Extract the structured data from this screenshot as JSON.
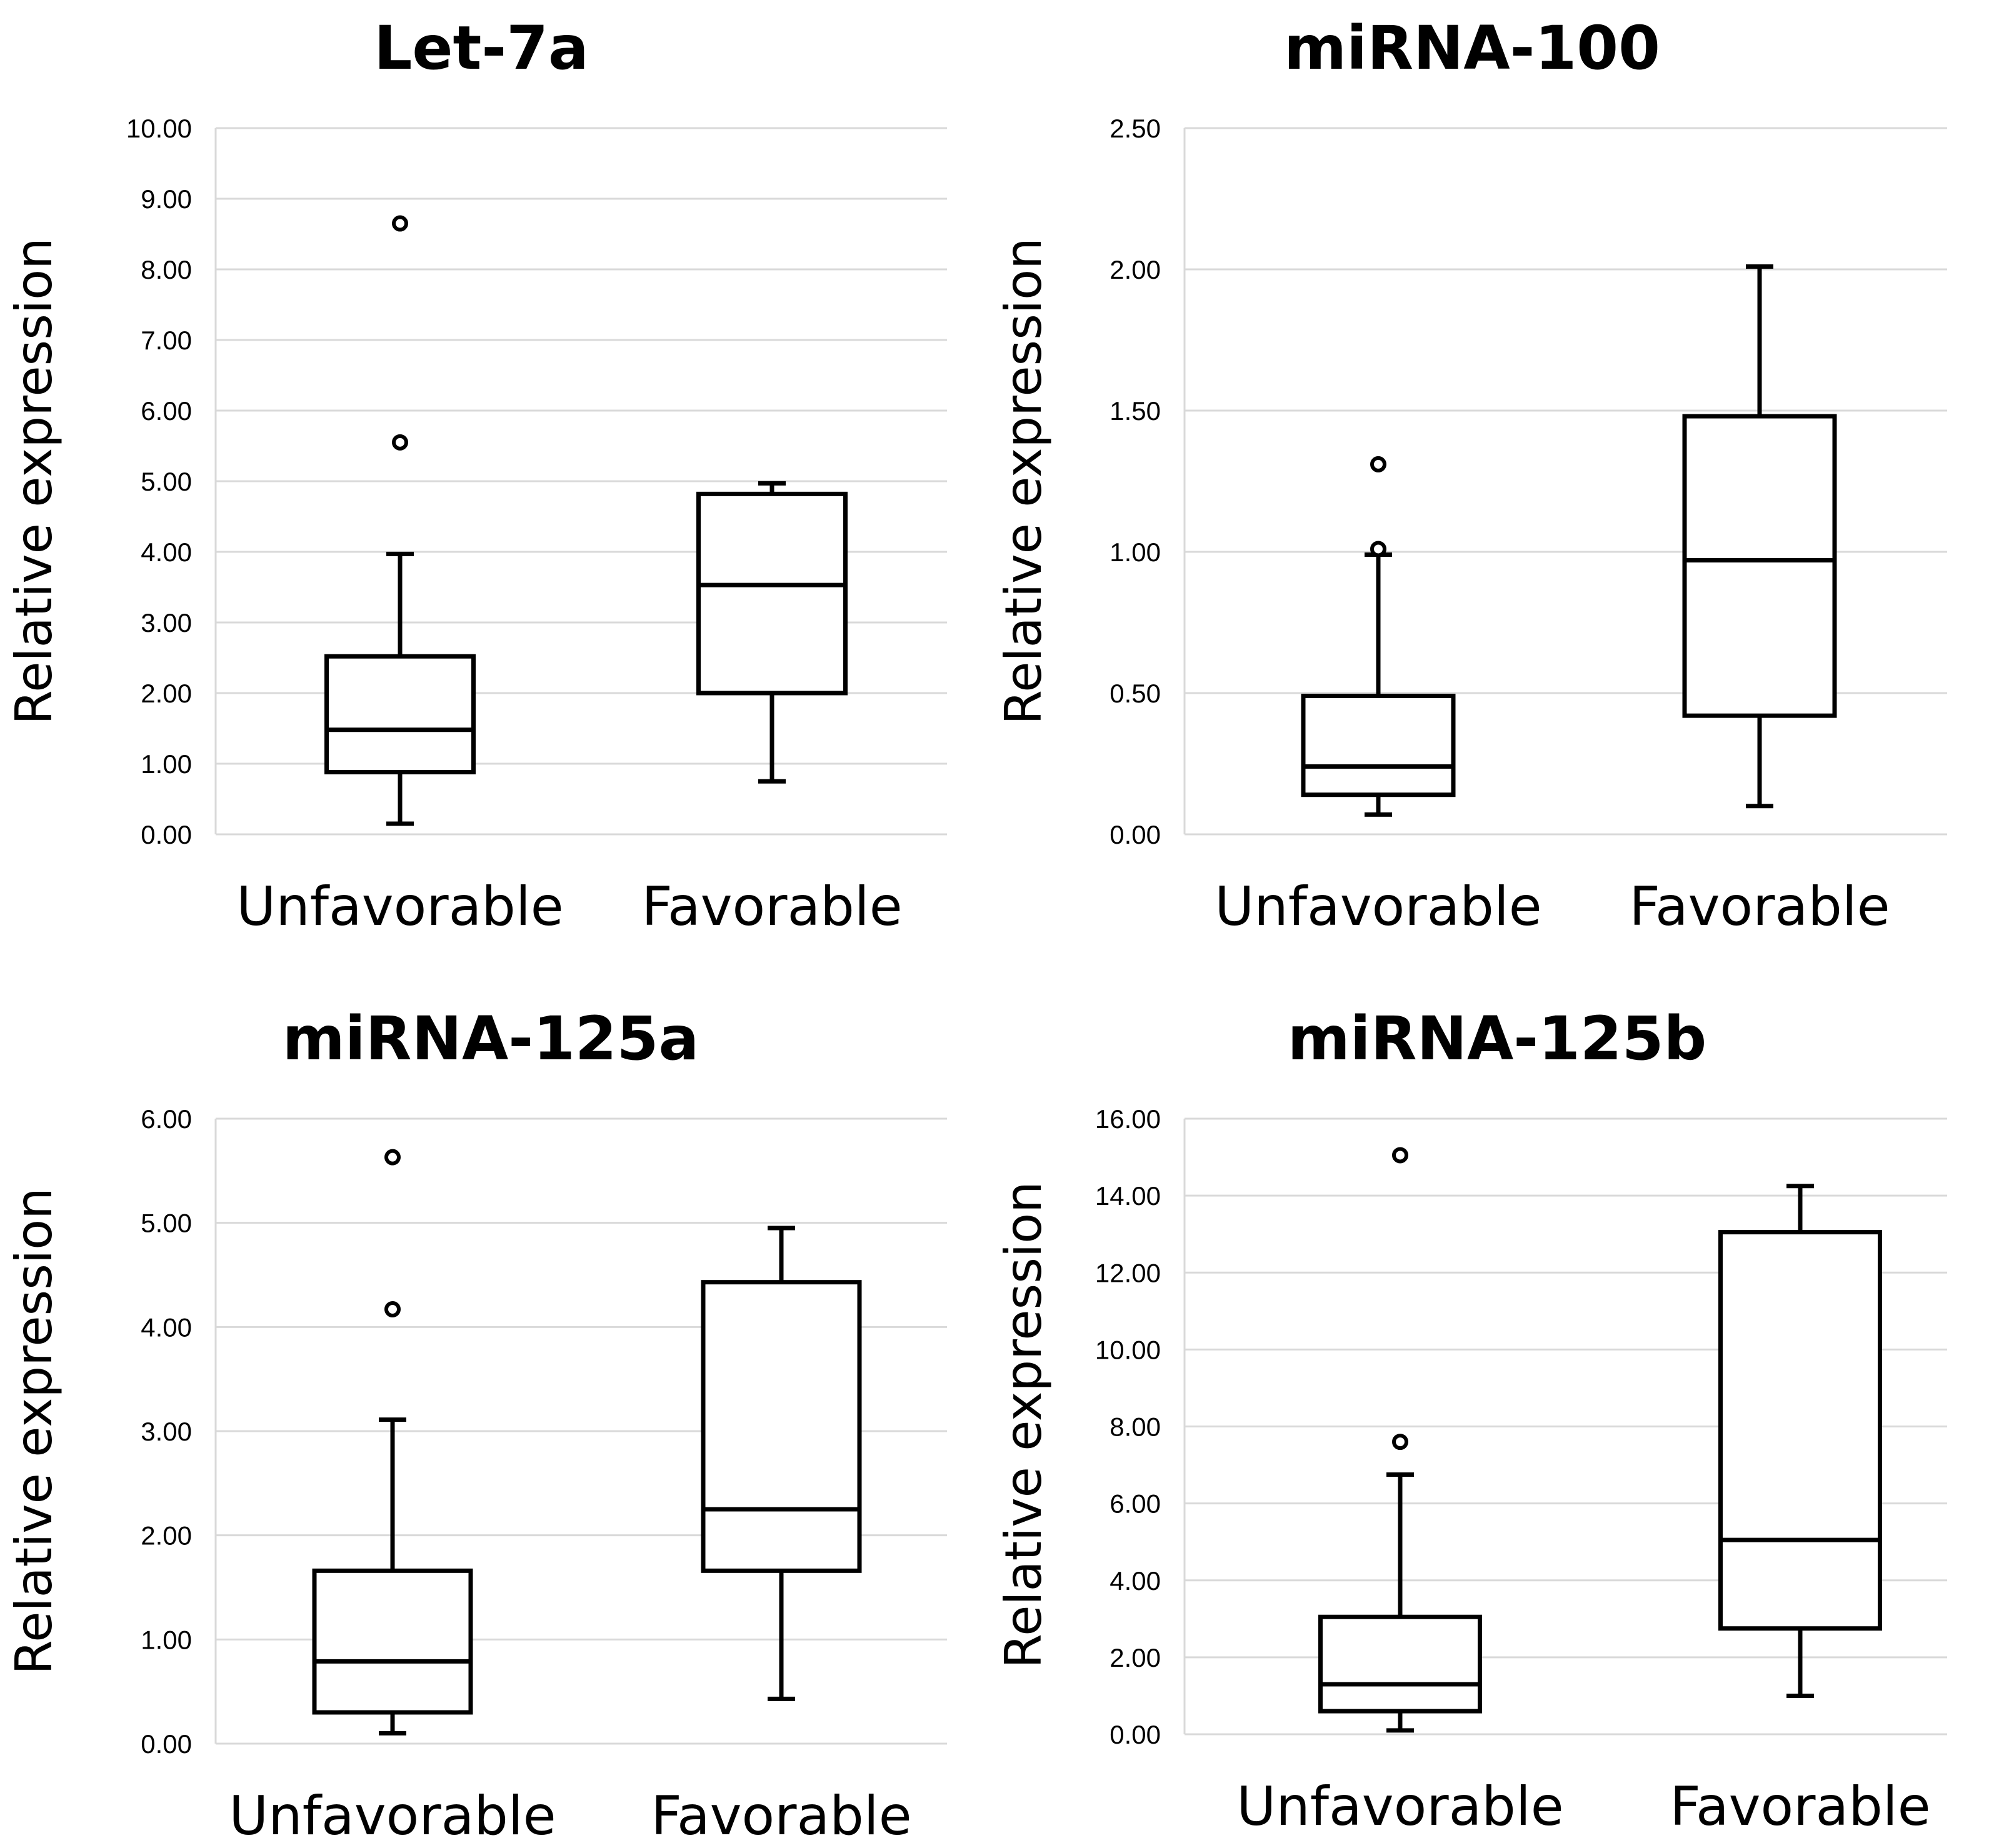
{
  "chart_data": [
    {
      "type": "box",
      "title": "Let-7a",
      "ylabel": "Relative expression",
      "ylim": [
        0,
        10
      ],
      "yticks": [
        "0.00",
        "1.00",
        "2.00",
        "3.00",
        "4.00",
        "5.00",
        "6.00",
        "7.00",
        "8.00",
        "9.00",
        "10.00"
      ],
      "grid": true,
      "categories": [
        "Unfavorable",
        "Favorable"
      ],
      "boxes": [
        {
          "category": "Unfavorable",
          "min": 0.15,
          "q1": 0.88,
          "median": 1.48,
          "q3": 2.52,
          "max": 3.97,
          "outliers": [
            8.65,
            5.55
          ]
        },
        {
          "category": "Favorable",
          "min": 0.75,
          "q1": 2.0,
          "median": 3.53,
          "q3": 4.82,
          "max": 4.97,
          "outliers": []
        }
      ]
    },
    {
      "type": "box",
      "title": "miRNA-100",
      "ylabel": "Relative expression",
      "ylim": [
        0,
        2.5
      ],
      "yticks": [
        "0.00",
        "0.50",
        "1.00",
        "1.50",
        "2.00",
        "2.50"
      ],
      "grid": true,
      "categories": [
        "Unfavorable",
        "Favorable"
      ],
      "boxes": [
        {
          "category": "Unfavorable",
          "min": 0.07,
          "q1": 0.14,
          "median": 0.24,
          "q3": 0.49,
          "max": 0.99,
          "outliers": [
            1.31,
            1.01
          ]
        },
        {
          "category": "Favorable",
          "min": 0.1,
          "q1": 0.42,
          "median": 0.97,
          "q3": 1.48,
          "max": 2.01,
          "outliers": []
        }
      ]
    },
    {
      "type": "box",
      "title": "miRNA-125a",
      "ylabel": "Relative expression",
      "ylim": [
        0,
        6
      ],
      "yticks": [
        "0.00",
        "1.00",
        "2.00",
        "3.00",
        "4.00",
        "5.00",
        "6.00"
      ],
      "grid": true,
      "categories": [
        "Unfavorable",
        "Favorable"
      ],
      "boxes": [
        {
          "category": "Unfavorable",
          "min": 0.1,
          "q1": 0.3,
          "median": 0.79,
          "q3": 1.66,
          "max": 3.11,
          "outliers": [
            5.63,
            4.17
          ]
        },
        {
          "category": "Favorable",
          "min": 0.43,
          "q1": 1.66,
          "median": 2.25,
          "q3": 4.43,
          "max": 4.95,
          "outliers": []
        }
      ]
    },
    {
      "type": "box",
      "title": "miRNA-125b",
      "ylabel": "Relative expression",
      "ylim": [
        0,
        16
      ],
      "yticks": [
        "0.00",
        "2.00",
        "4.00",
        "6.00",
        "8.00",
        "10.00",
        "12.00",
        "14.00",
        "16.00"
      ],
      "grid": true,
      "categories": [
        "Unfavorable",
        "Favorable"
      ],
      "boxes": [
        {
          "category": "Unfavorable",
          "min": 0.1,
          "q1": 0.6,
          "median": 1.3,
          "q3": 3.05,
          "max": 6.75,
          "outliers": [
            15.05,
            7.6
          ]
        },
        {
          "category": "Favorable",
          "min": 1.0,
          "q1": 2.75,
          "median": 5.05,
          "q3": 13.05,
          "max": 14.25,
          "outliers": []
        }
      ]
    }
  ]
}
